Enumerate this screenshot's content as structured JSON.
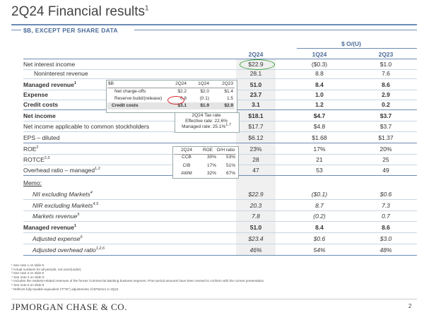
{
  "title": "2Q24 Financial results",
  "title_sup": "1",
  "subtitle": "$B, EXCEPT PER SHARE DATA",
  "header": {
    "group": "$ O/(U)",
    "col1": "2Q24",
    "col2": "1Q24",
    "col3": "2Q23"
  },
  "rows": [
    {
      "label": "Net interest income",
      "sup": "",
      "v1": "$22.9",
      "v2": "($0.3)",
      "v3": "$1.0"
    },
    {
      "label": "Noninterest revenue",
      "sup": "",
      "v1": "28.1",
      "v2": "8.8",
      "v3": "7.6"
    },
    {
      "label": "Managed revenue",
      "sup": "1",
      "v1": "51.0",
      "v2": "8.4",
      "v3": "8.6"
    },
    {
      "label": "Expense",
      "sup": "",
      "v1": "23.7",
      "v2": "1.0",
      "v3": "2.9"
    },
    {
      "label": "Credit costs",
      "sup": "",
      "v1": "3.1",
      "v2": "1.2",
      "v3": "0.2"
    },
    {
      "label": "Net income",
      "sup": "",
      "v1": "$18.1",
      "v2": "$4.7",
      "v3": "$3.7"
    },
    {
      "label": "Net income applicable to common stockholders",
      "sup": "",
      "v1": "$17.7",
      "v2": "$4.8",
      "v3": "$3.7"
    },
    {
      "label": "EPS – diluted",
      "sup": "",
      "v1": "$6.12",
      "v2": "$1.68",
      "v3": "$1.37"
    },
    {
      "label": "ROE",
      "sup": "2",
      "v1": "23%",
      "v2": "17%",
      "v3": "20%"
    },
    {
      "label": "ROTCE",
      "sup": "2,3",
      "v1": "28",
      "v2": "21",
      "v3": "25"
    },
    {
      "label": "Overhead ratio – managed",
      "sup": "1,2",
      "v1": "47",
      "v2": "53",
      "v3": "49"
    }
  ],
  "memo_label": "Memo:",
  "memo_rows": [
    {
      "label": "NII excluding Markets",
      "sup": "4",
      "v1": "$22.9",
      "v2": "($0.1)",
      "v3": "$0.6"
    },
    {
      "label": "NIR excluding Markets",
      "sup": "4,5",
      "v1": "20.3",
      "v2": "8.7",
      "v3": "7.3"
    },
    {
      "label": "Markets revenue",
      "sup": "5",
      "v1": "7.8",
      "v2": "(0.2)",
      "v3": "0.7"
    },
    {
      "label": "Managed revenue",
      "sup": "1",
      "v1": "51.0",
      "v2": "8.4",
      "v3": "8.6"
    },
    {
      "label": "Adjusted expense",
      "sup": "6",
      "v1": "$23.4",
      "v2": "$0.6",
      "v3": "$3.0"
    },
    {
      "label": "Adjusted overhead ratio",
      "sup": "1,2,6",
      "v1": "46%",
      "v2": "54%",
      "v3": "48%"
    }
  ],
  "credit_box": {
    "header": [
      "$B",
      "2Q24",
      "1Q24",
      "2Q23"
    ],
    "rows": [
      [
        "Net charge-offs",
        "$2.2",
        "$2.0",
        "$1.4"
      ],
      [
        "Reserve build/(release)",
        "0.8",
        "(0.1)",
        "1.5"
      ],
      [
        "Credit costs",
        "$3.1",
        "$1.9",
        "$2.9"
      ]
    ]
  },
  "tax_box": {
    "title": "2Q24 Tax rate",
    "line1": "Effective rate: 22.6%",
    "line2": "Managed rate: 25.1%",
    "line2_sup": "1,7"
  },
  "roe_box": {
    "header": [
      "2Q24",
      "ROE",
      "O/H ratio"
    ],
    "rows": [
      [
        "CCB",
        "30%",
        "53%"
      ],
      [
        "CIB",
        "17%",
        "51%"
      ],
      [
        "AWM",
        "32%",
        "67%"
      ]
    ]
  },
  "footnotes": [
    "¹ See note 1 on slide 9",
    "² Actual numbers for all periods, not over/(under)",
    "³ See note 3 on slide 9",
    "⁴ See note 2 on slide 9",
    "⁵ Includes the markets-related revenues of the former Commercial Banking business segment. Prior-period amounts have been revised to conform with the current presentation",
    "⁶ See note 5 on slide 9",
    "⁷ Reflects fully taxable-equivalent (\"FTE\") adjustments of $792mm in 2Q24"
  ],
  "logo": "JPMORGAN CHASE & CO.",
  "page_number": "2",
  "colors": {
    "accent": "#4a6a98",
    "highlight_green": "#3aa03a",
    "highlight_red": "#d9262c"
  }
}
